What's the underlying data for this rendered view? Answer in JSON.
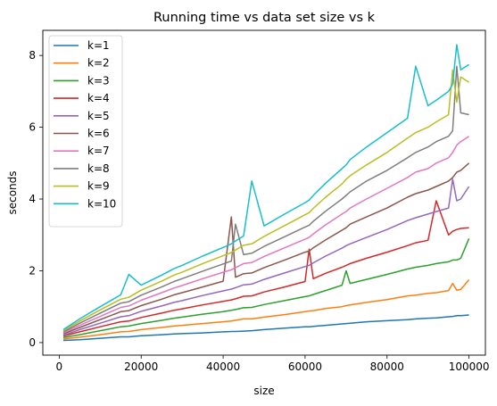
{
  "chart_data": {
    "type": "line",
    "title": "Running time vs data set size vs k",
    "xlabel": "size",
    "ylabel": "seconds",
    "xlim": [
      -4000,
      104000
    ],
    "ylim": [
      -0.35,
      8.7
    ],
    "xticks": [
      0,
      20000,
      40000,
      60000,
      80000,
      100000
    ],
    "xtick_labels": [
      "0",
      "20000",
      "40000",
      "60000",
      "80000",
      "100000"
    ],
    "yticks": [
      0,
      2,
      4,
      6,
      8
    ],
    "ytick_labels": [
      "0",
      "2",
      "4",
      "6",
      "8"
    ],
    "grid": false,
    "legend_position": "top-left",
    "x": [
      1000,
      5000,
      10000,
      15000,
      17000,
      20000,
      25000,
      28000,
      30000,
      35000,
      40000,
      42000,
      43000,
      45000,
      47000,
      50000,
      55000,
      60000,
      61000,
      62000,
      65000,
      69000,
      70000,
      71000,
      75000,
      80000,
      85000,
      87000,
      90000,
      92000,
      95000,
      96000,
      97000,
      98000,
      100000
    ],
    "series": [
      {
        "name": "k=1",
        "color": "#1f77b4",
        "values": [
          0.06,
          0.08,
          0.12,
          0.16,
          0.16,
          0.19,
          0.22,
          0.24,
          0.25,
          0.27,
          0.3,
          0.31,
          0.31,
          0.32,
          0.33,
          0.36,
          0.4,
          0.44,
          0.44,
          0.45,
          0.48,
          0.52,
          0.53,
          0.54,
          0.58,
          0.61,
          0.64,
          0.66,
          0.68,
          0.69,
          0.72,
          0.73,
          0.75,
          0.75,
          0.77
        ]
      },
      {
        "name": "k=2",
        "color": "#ff7f0e",
        "values": [
          0.1,
          0.15,
          0.22,
          0.3,
          0.31,
          0.36,
          0.42,
          0.46,
          0.48,
          0.53,
          0.58,
          0.6,
          0.62,
          0.66,
          0.66,
          0.71,
          0.78,
          0.86,
          0.88,
          0.89,
          0.95,
          1.0,
          1.03,
          1.05,
          1.12,
          1.2,
          1.3,
          1.32,
          1.37,
          1.39,
          1.45,
          1.65,
          1.46,
          1.48,
          1.75
        ]
      },
      {
        "name": "k=3",
        "color": "#2ca02c",
        "values": [
          0.14,
          0.22,
          0.33,
          0.44,
          0.46,
          0.53,
          0.62,
          0.68,
          0.71,
          0.79,
          0.86,
          0.9,
          0.92,
          0.97,
          0.98,
          1.06,
          1.17,
          1.28,
          1.3,
          1.34,
          1.45,
          1.6,
          2.0,
          1.65,
          1.76,
          1.9,
          2.05,
          2.1,
          2.15,
          2.2,
          2.25,
          2.3,
          2.3,
          2.35,
          2.9
        ]
      },
      {
        "name": "k=4",
        "color": "#d62728",
        "values": [
          0.18,
          0.3,
          0.44,
          0.58,
          0.6,
          0.7,
          0.82,
          0.9,
          0.94,
          1.05,
          1.15,
          1.19,
          1.22,
          1.29,
          1.3,
          1.41,
          1.55,
          1.7,
          2.6,
          1.78,
          1.93,
          2.1,
          2.15,
          2.2,
          2.35,
          2.52,
          2.7,
          2.78,
          2.85,
          3.95,
          3.0,
          3.1,
          3.15,
          3.18,
          3.2
        ]
      },
      {
        "name": "k=5",
        "color": "#9467bd",
        "values": [
          0.2,
          0.36,
          0.54,
          0.72,
          0.75,
          0.87,
          1.02,
          1.12,
          1.17,
          1.31,
          1.44,
          1.49,
          1.53,
          1.61,
          1.63,
          1.76,
          1.94,
          2.12,
          2.15,
          2.22,
          2.41,
          2.63,
          2.7,
          2.75,
          2.93,
          3.15,
          3.4,
          3.48,
          3.58,
          3.65,
          3.75,
          4.55,
          3.95,
          4.0,
          4.35
        ]
      },
      {
        "name": "k=6",
        "color": "#8c564b",
        "values": [
          0.24,
          0.42,
          0.64,
          0.86,
          0.89,
          1.03,
          1.21,
          1.33,
          1.39,
          1.55,
          1.71,
          3.5,
          1.82,
          1.92,
          1.94,
          2.09,
          2.3,
          2.52,
          2.55,
          2.64,
          2.86,
          3.13,
          3.2,
          3.3,
          3.5,
          3.75,
          4.05,
          4.15,
          4.25,
          4.35,
          4.5,
          4.6,
          4.75,
          4.8,
          5.0
        ]
      },
      {
        "name": "k=7",
        "color": "#e377c2",
        "values": [
          0.27,
          0.48,
          0.73,
          0.98,
          1.02,
          1.18,
          1.39,
          1.52,
          1.59,
          1.78,
          1.96,
          2.03,
          2.09,
          2.2,
          2.23,
          2.4,
          2.64,
          2.88,
          2.93,
          3.03,
          3.28,
          3.58,
          3.65,
          3.75,
          4.0,
          4.3,
          4.6,
          4.75,
          4.85,
          5.0,
          5.15,
          5.3,
          5.5,
          5.6,
          5.75
        ]
      },
      {
        "name": "k=8",
        "color": "#7f7f7f",
        "values": [
          0.3,
          0.54,
          0.82,
          1.1,
          1.14,
          1.32,
          1.55,
          1.7,
          1.78,
          1.99,
          2.19,
          2.27,
          3.3,
          2.45,
          2.49,
          2.68,
          2.95,
          3.22,
          3.27,
          3.38,
          3.66,
          4.0,
          4.1,
          4.2,
          4.5,
          4.8,
          5.15,
          5.3,
          5.45,
          5.6,
          5.75,
          5.9,
          7.7,
          6.4,
          6.35
        ]
      },
      {
        "name": "k=9",
        "color": "#bcbd22",
        "values": [
          0.33,
          0.6,
          0.91,
          1.21,
          1.26,
          1.46,
          1.71,
          1.88,
          1.96,
          2.2,
          2.42,
          2.51,
          2.58,
          2.71,
          2.75,
          2.96,
          3.26,
          3.56,
          3.62,
          3.74,
          4.05,
          4.42,
          4.55,
          4.65,
          4.95,
          5.3,
          5.7,
          5.85,
          6.0,
          6.15,
          6.35,
          7.6,
          6.7,
          7.4,
          7.25
        ]
      },
      {
        "name": "k=10",
        "color": "#17becf",
        "values": [
          0.36,
          0.66,
          1.0,
          1.33,
          1.9,
          1.6,
          1.88,
          2.06,
          2.15,
          2.41,
          2.65,
          2.75,
          2.83,
          2.97,
          4.5,
          3.25,
          3.58,
          3.9,
          3.97,
          4.1,
          4.44,
          4.85,
          4.95,
          5.1,
          5.45,
          5.85,
          6.25,
          7.7,
          6.6,
          6.75,
          7.0,
          7.2,
          8.3,
          7.6,
          7.75
        ]
      }
    ]
  }
}
